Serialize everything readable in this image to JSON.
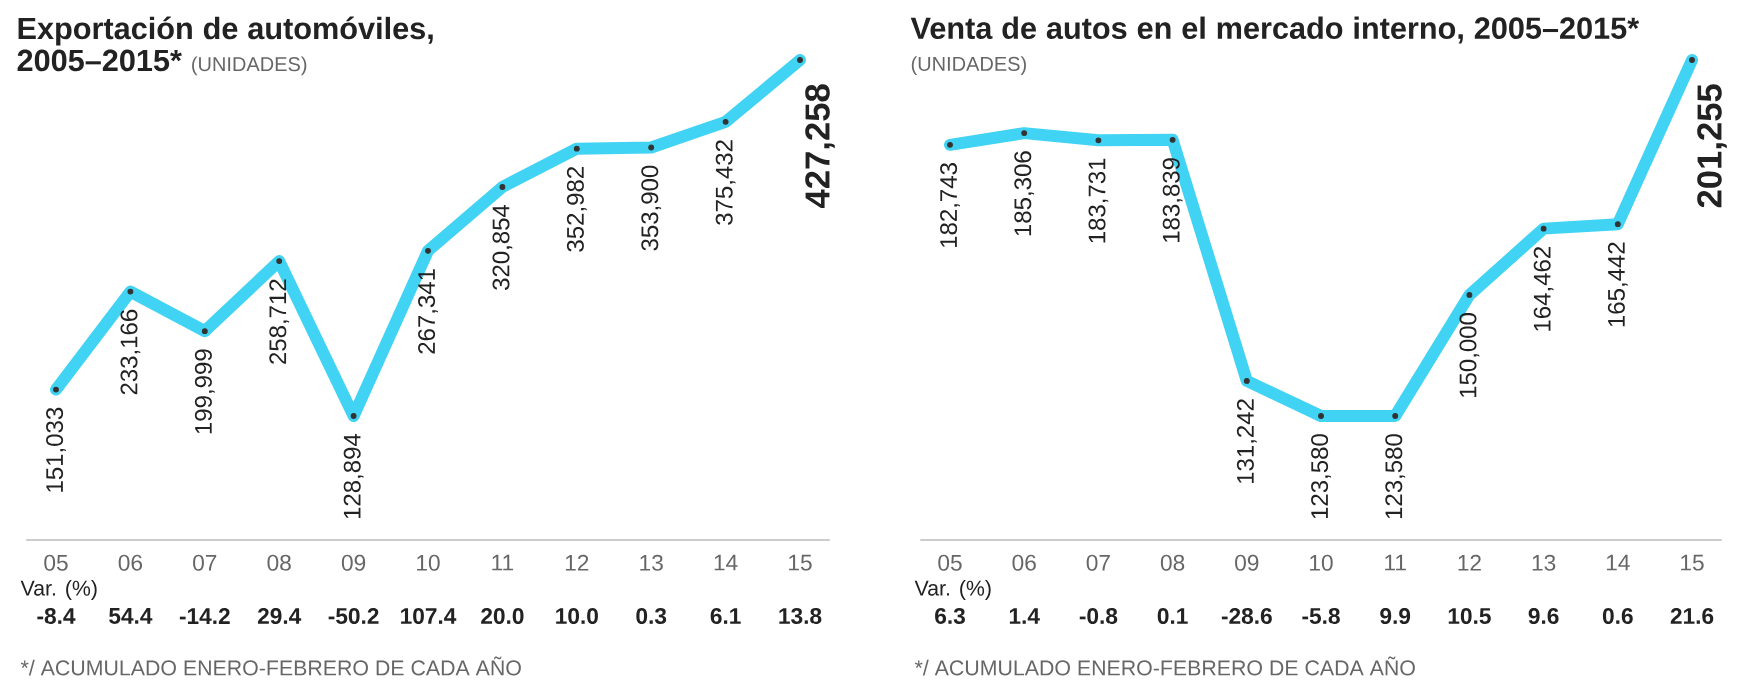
{
  "chart_data": [
    {
      "type": "line",
      "title": "Exportación de automóviles, 2005–2015*",
      "subtitle": "(UNIDADES)",
      "categories": [
        "05",
        "06",
        "07",
        "08",
        "09",
        "10",
        "11",
        "12",
        "13",
        "14",
        "15"
      ],
      "values": [
        151033,
        233166,
        199999,
        258712,
        128894,
        267341,
        320854,
        352982,
        353900,
        375432,
        427258
      ],
      "value_labels": [
        "151,033",
        "233,166",
        "199,999",
        "258,712",
        "128,894",
        "267,341",
        "320,854",
        "352,982",
        "353,900",
        "375,432",
        "427,258"
      ],
      "color": "#41d3f4",
      "marker": "circle",
      "tick_labels": "x",
      "annotations": [
        "Var. (%)",
        "-8.4",
        "54.4",
        "-14.2",
        "29.4",
        "-50.2",
        "107.4",
        "20.0",
        "10.0",
        "0.3",
        "6.1",
        "13.8",
        "*/ ACUMULADO ENERO-FEBRERO DE CADA AÑO"
      ]
    },
    {
      "type": "line",
      "title": "Venta de autos en el mercado interno, 2005–2015*",
      "subtitle": "(UNIDADES)",
      "categories": [
        "05",
        "06",
        "07",
        "08",
        "09",
        "10",
        "11",
        "12",
        "13",
        "14",
        "15"
      ],
      "values": [
        182743,
        185306,
        183731,
        183839,
        131242,
        123580,
        123580,
        150000,
        164462,
        165442,
        201255
      ],
      "value_labels": [
        "182,743",
        "185,306",
        "183,731",
        "183,839",
        "131,242",
        "123,580",
        "123,580",
        "150,000",
        "164,462",
        "165,442",
        "201,255"
      ],
      "color": "#41d3f4",
      "marker": "circle",
      "tick_labels": "x",
      "annotations": [
        "Var. (%)",
        "6.3",
        "1.4",
        "-0.8",
        "0.1",
        "-28.6",
        "-5.8",
        "9.9",
        "10.5",
        "9.6",
        "0.6",
        "21.6",
        "*/ ACUMULADO ENERO-FEBRERO DE CADA AÑO"
      ]
    }
  ]
}
